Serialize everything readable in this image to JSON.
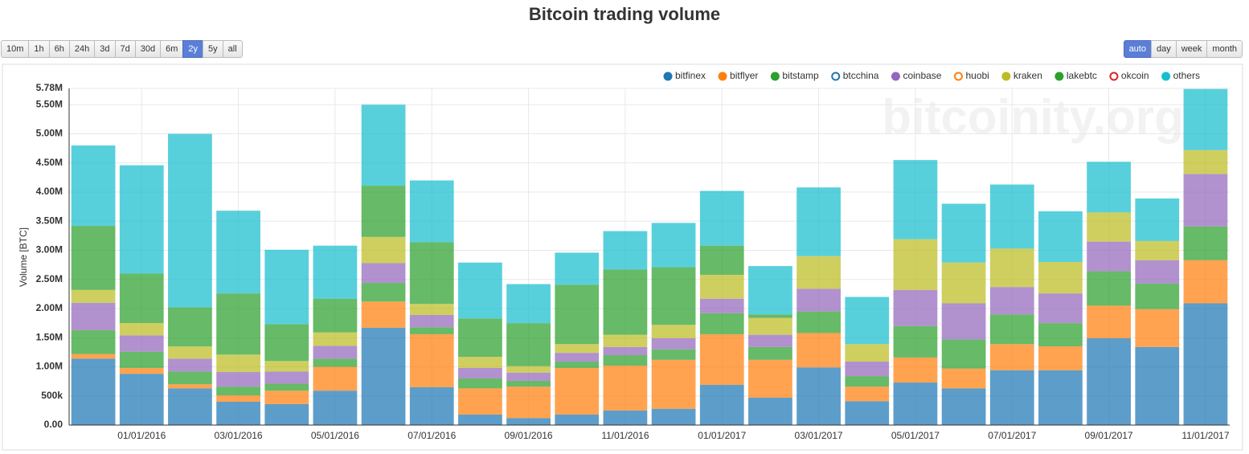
{
  "chart_data": {
    "type": "stacked_bar",
    "title": "Bitcoin trading volume",
    "y_label": "Volume [BTC]",
    "categories": [
      null,
      "01/01/2016",
      null,
      "03/01/2016",
      null,
      "05/01/2016",
      null,
      "07/01/2016",
      null,
      "09/01/2016",
      null,
      "11/01/2016",
      null,
      "01/01/2017",
      null,
      "03/01/2017",
      null,
      "05/01/2017",
      null,
      "07/01/2017",
      null,
      "09/01/2017",
      null,
      "11/01/2017"
    ],
    "series": [
      {
        "name": "bitfinex",
        "color": "#1f77b4",
        "visible": true,
        "values": [
          1140000,
          880000,
          630000,
          400000,
          360000,
          590000,
          1670000,
          650000,
          180000,
          120000,
          180000,
          250000,
          280000,
          690000,
          470000,
          990000,
          410000,
          730000,
          630000,
          940000,
          940000,
          1490000,
          1340000,
          2090000
        ]
      },
      {
        "name": "bitflyer",
        "color": "#ff7f0e",
        "visible": true,
        "values": [
          80000,
          100000,
          70000,
          110000,
          230000,
          410000,
          450000,
          910000,
          450000,
          540000,
          800000,
          770000,
          840000,
          870000,
          650000,
          590000,
          250000,
          430000,
          340000,
          450000,
          410000,
          560000,
          650000,
          740000
        ]
      },
      {
        "name": "bitstamp",
        "color": "#2ca02c",
        "visible": true,
        "values": [
          410000,
          280000,
          220000,
          150000,
          120000,
          140000,
          320000,
          120000,
          170000,
          100000,
          110000,
          180000,
          180000,
          360000,
          220000,
          370000,
          180000,
          540000,
          500000,
          510000,
          400000,
          590000,
          440000,
          580000
        ]
      },
      {
        "name": "btcchina",
        "color": "#1f77b4",
        "visible": false
      },
      {
        "name": "coinbase",
        "color": "#9467bd",
        "visible": true,
        "values": [
          470000,
          280000,
          220000,
          250000,
          210000,
          220000,
          340000,
          210000,
          180000,
          140000,
          150000,
          140000,
          190000,
          250000,
          210000,
          390000,
          250000,
          620000,
          620000,
          470000,
          510000,
          510000,
          400000,
          900000
        ]
      },
      {
        "name": "huobi",
        "color": "#ff7f0e",
        "visible": false
      },
      {
        "name": "kraken",
        "color": "#bcbd22",
        "visible": true,
        "values": [
          220000,
          210000,
          210000,
          300000,
          180000,
          230000,
          450000,
          190000,
          190000,
          110000,
          150000,
          210000,
          230000,
          410000,
          290000,
          560000,
          300000,
          870000,
          700000,
          660000,
          540000,
          500000,
          330000,
          410000
        ]
      },
      {
        "name": "lakebtc",
        "color": "#2ca02c",
        "visible": true,
        "values": [
          1100000,
          850000,
          670000,
          1050000,
          630000,
          580000,
          880000,
          1060000,
          660000,
          740000,
          1020000,
          1120000,
          990000,
          500000,
          60000,
          0,
          0,
          0,
          0,
          0,
          0,
          0,
          0,
          0
        ]
      },
      {
        "name": "okcoin",
        "color": "#d62728",
        "visible": false
      },
      {
        "name": "others",
        "color": "#17becf",
        "visible": true,
        "values": [
          1380000,
          1860000,
          2980000,
          1420000,
          1280000,
          910000,
          1390000,
          1060000,
          960000,
          670000,
          550000,
          660000,
          760000,
          940000,
          830000,
          1180000,
          810000,
          1360000,
          1010000,
          1100000,
          870000,
          870000,
          730000,
          1050000
        ]
      }
    ],
    "ylim": [
      0,
      5780000
    ],
    "yticks": [
      {
        "value": 0,
        "label": "0.00"
      },
      {
        "value": 500000,
        "label": "500k"
      },
      {
        "value": 1000000,
        "label": "1.00M"
      },
      {
        "value": 1500000,
        "label": "1.50M"
      },
      {
        "value": 2000000,
        "label": "2.00M"
      },
      {
        "value": 2500000,
        "label": "2.50M"
      },
      {
        "value": 3000000,
        "label": "3.00M"
      },
      {
        "value": 3500000,
        "label": "3.50M"
      },
      {
        "value": 4000000,
        "label": "4.00M"
      },
      {
        "value": 4500000,
        "label": "4.50M"
      },
      {
        "value": 5000000,
        "label": "5.00M"
      },
      {
        "value": 5500000,
        "label": "5.50M"
      },
      {
        "value": 5780000,
        "label": "5.78M"
      }
    ],
    "grid": true,
    "legend": "top-right",
    "watermark": "bitcoinity.org"
  },
  "controls": {
    "range_buttons": [
      {
        "label": "10m",
        "active": false
      },
      {
        "label": "1h",
        "active": false
      },
      {
        "label": "6h",
        "active": false
      },
      {
        "label": "24h",
        "active": false
      },
      {
        "label": "3d",
        "active": false
      },
      {
        "label": "7d",
        "active": false
      },
      {
        "label": "30d",
        "active": false
      },
      {
        "label": "6m",
        "active": false
      },
      {
        "label": "2y",
        "active": true
      },
      {
        "label": "5y",
        "active": false
      },
      {
        "label": "all",
        "active": false
      }
    ],
    "resolution_buttons": [
      {
        "label": "auto",
        "active": true
      },
      {
        "label": "day",
        "active": false
      },
      {
        "label": "week",
        "active": false
      },
      {
        "label": "month",
        "active": false
      }
    ]
  }
}
